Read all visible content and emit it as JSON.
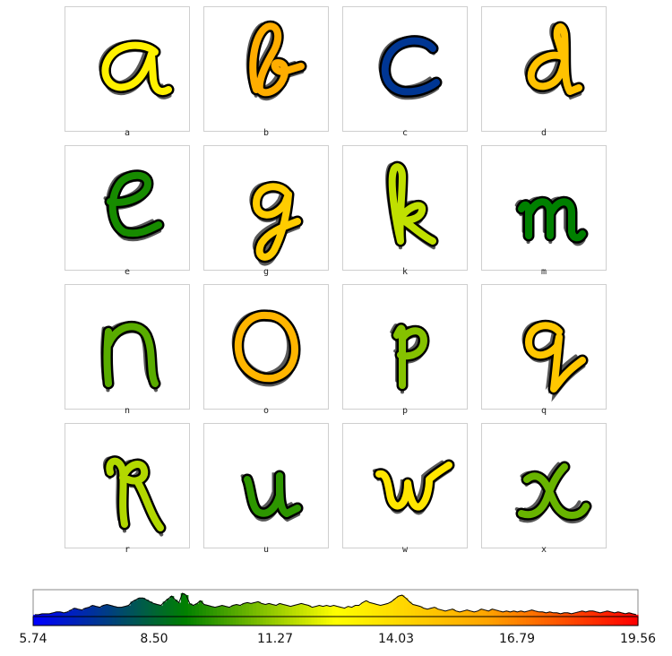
{
  "letters": [
    "a",
    "b",
    "c",
    "d",
    "e",
    "g",
    "k",
    "m",
    "n",
    "o",
    "p",
    "q",
    "r",
    "u",
    "w",
    "x"
  ],
  "letter_values": [
    13.2,
    15.8,
    7.2,
    15.0,
    9.5,
    14.6,
    11.8,
    9.2,
    10.4,
    15.5,
    11.0,
    14.8,
    11.6,
    9.8,
    13.6,
    10.6
  ],
  "colorbar": {
    "ticks": [
      "5.74",
      "8.50",
      "11.27",
      "14.03",
      "16.79",
      "19.56"
    ],
    "min": 5.74,
    "max": 19.56,
    "gradient_colors": [
      "#0000ff",
      "#008000",
      "#ffff00",
      "#ffa500",
      "#ff0000"
    ],
    "outline_color": "#ffffff",
    "stroke_color": "#000000"
  },
  "chart_data": {
    "type": "heatmap",
    "categories": [
      "a",
      "b",
      "c",
      "d",
      "e",
      "g",
      "k",
      "m",
      "n",
      "o",
      "p",
      "q",
      "r",
      "u",
      "w",
      "x"
    ],
    "values": [
      13.2,
      15.8,
      7.2,
      15.0,
      9.5,
      14.6,
      11.8,
      9.2,
      10.4,
      15.5,
      11.0,
      14.8,
      11.6,
      9.8,
      13.6,
      10.6
    ],
    "color_scale": {
      "min": 5.74,
      "max": 19.56,
      "ticks": [
        5.74,
        8.5,
        11.27,
        14.03,
        16.79,
        19.56
      ]
    },
    "histogram": [
      2,
      2,
      3,
      3,
      3,
      4,
      5,
      5,
      4,
      5,
      7,
      9,
      8,
      7,
      9,
      10,
      12,
      11,
      10,
      12,
      13,
      12,
      11,
      10,
      10,
      11,
      12,
      16,
      18,
      20,
      20,
      18,
      16,
      14,
      13,
      12,
      16,
      19,
      22,
      18,
      15,
      25,
      23,
      14,
      12,
      14,
      17,
      13,
      12,
      11,
      10,
      11,
      12,
      11,
      10,
      12,
      13,
      12,
      14,
      15,
      14,
      15,
      16,
      14,
      13,
      14,
      13,
      12,
      14,
      13,
      12,
      11,
      12,
      13,
      14,
      13,
      12,
      10,
      11,
      12,
      11,
      12,
      11,
      12,
      11,
      10,
      9,
      11,
      10,
      12,
      12,
      15,
      17,
      15,
      14,
      13,
      12,
      13,
      14,
      16,
      19,
      22,
      23,
      20,
      16,
      13,
      12,
      11,
      9,
      8,
      9,
      10,
      8,
      7,
      6,
      7,
      8,
      6,
      5,
      6,
      7,
      6,
      5,
      6,
      8,
      7,
      6,
      8,
      7,
      6,
      5,
      6,
      5,
      6,
      5,
      6,
      5,
      6,
      7,
      6,
      5,
      5,
      4,
      5,
      4,
      4,
      3,
      4,
      4,
      3,
      4,
      5,
      6,
      5,
      6,
      6,
      5,
      4,
      5,
      6,
      5,
      4,
      5,
      4,
      3,
      4,
      3,
      2
    ],
    "xlabel": "",
    "ylabel": ""
  }
}
